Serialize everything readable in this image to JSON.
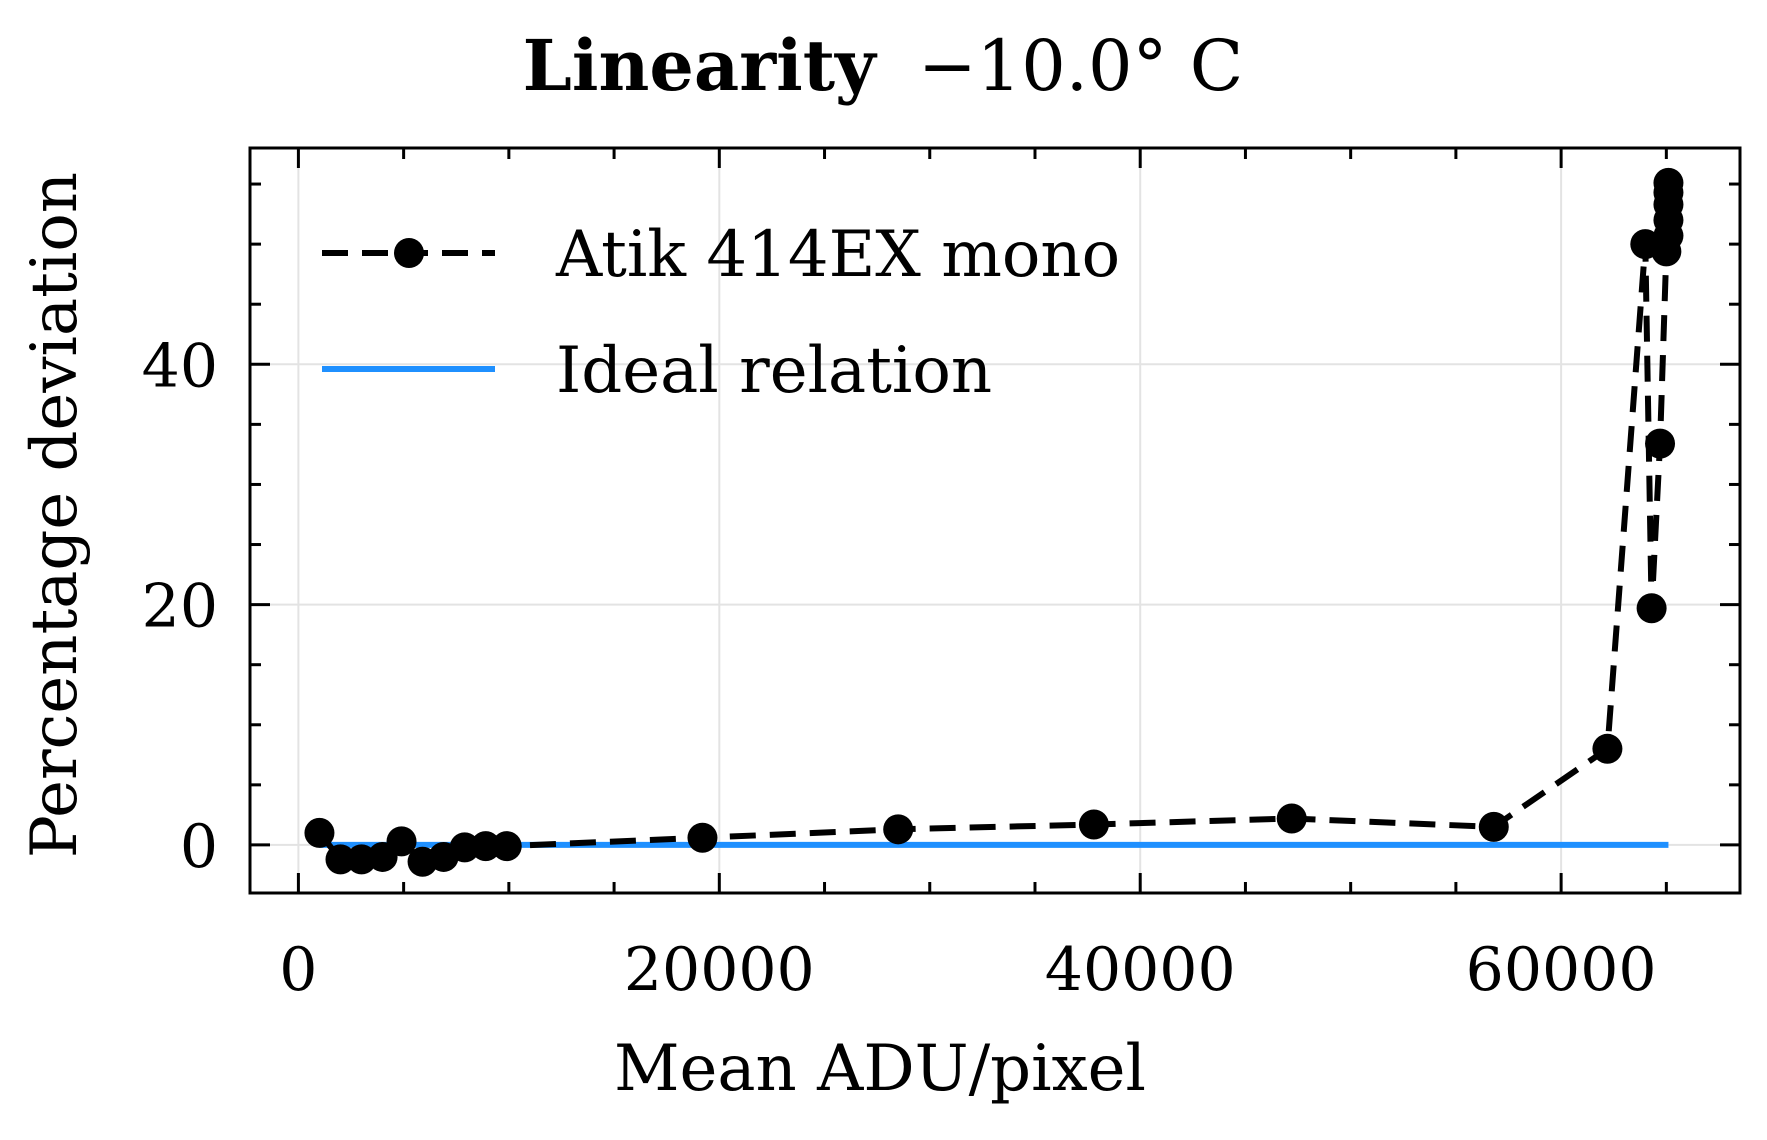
{
  "chart_data": {
    "type": "line",
    "title_bold": "Linearity",
    "title_rest": "−10.0° C",
    "xlabel": "Mean ADU/pixel",
    "ylabel": "Percentage deviation",
    "xlim": [
      -2300,
      68500
    ],
    "ylim": [
      -4,
      58
    ],
    "xticks": [
      0,
      20000,
      40000,
      60000
    ],
    "xtick_labels": [
      "0",
      "20000",
      "40000",
      "60000"
    ],
    "yticks": [
      0,
      20,
      40
    ],
    "ytick_labels": [
      "0",
      "20",
      "40"
    ],
    "x_minor_step": 5000,
    "y_minor_step": 5,
    "grid": true,
    "legend_position": "upper-left",
    "series": [
      {
        "name": "Atik 414EX mono",
        "style": "dashed-markers",
        "color": "#000000",
        "x": [
          1000,
          2000,
          3000,
          4000,
          4900,
          5900,
          6900,
          7900,
          8900,
          9900,
          19200,
          28500,
          37800,
          47200,
          56800,
          62200,
          64000,
          64300,
          64700,
          65000,
          65100,
          65100,
          65100,
          65100,
          65100
        ],
        "y": [
          1.0,
          -1.2,
          -1.2,
          -1.0,
          0.3,
          -1.4,
          -1.0,
          -0.2,
          -0.1,
          -0.1,
          0.6,
          1.3,
          1.7,
          2.2,
          1.5,
          8.0,
          50.0,
          19.7,
          33.4,
          49.4,
          50.7,
          52.0,
          53.3,
          54.3,
          55.1
        ]
      },
      {
        "name": "Ideal relation",
        "style": "solid",
        "color": "#1f90ff",
        "x": [
          1000,
          65100
        ],
        "y": [
          0,
          0
        ]
      }
    ]
  }
}
